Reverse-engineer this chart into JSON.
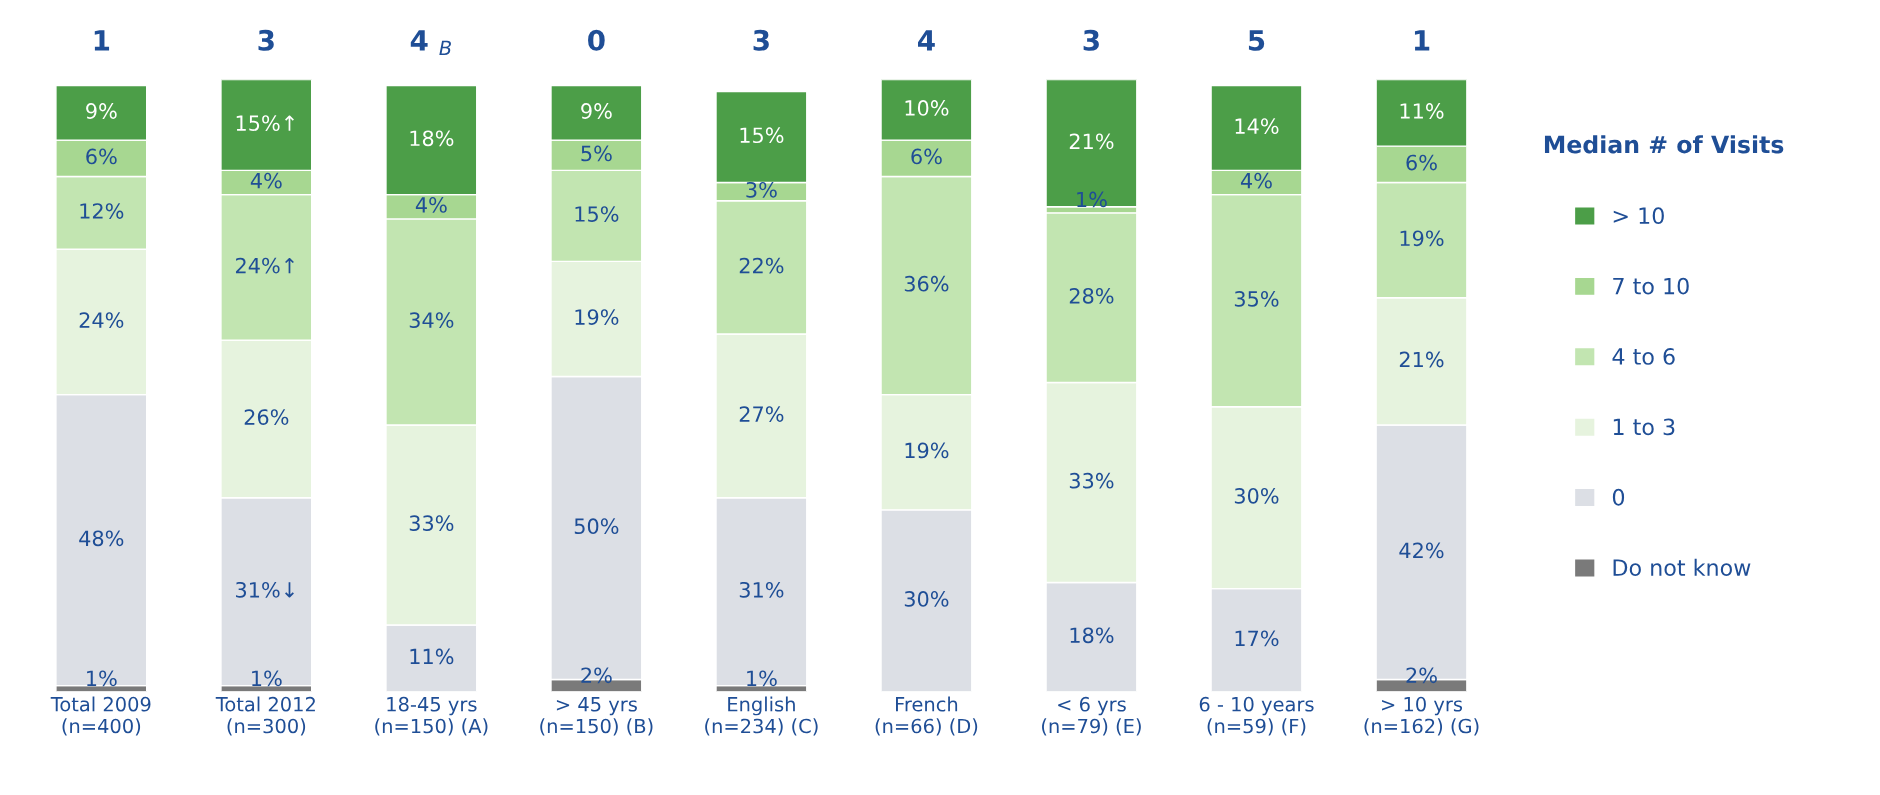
{
  "chart_data": {
    "type": "bar",
    "stacked": true,
    "legend": "right",
    "legend_title": "Median # of Visits",
    "grid": false,
    "tick_labels": "x",
    "categories": [
      "Total 2009\n(n=400)",
      "Total 2012\n(n=300)",
      "18-45 yrs\n(n=150) (A)",
      "> 45 yrs\n(n=150) (B)",
      "English\n(n=234) (C)",
      "French\n(n=66) (D)",
      "< 6 yrs\n(n=79) (E)",
      "6 - 10 years\n(n=59) (F)",
      "> 10 yrs\n(n=162) (G)"
    ],
    "series": [
      {
        "name": "Do not know",
        "color": "#7a7a7a",
        "values": [
          1,
          1,
          null,
          2,
          1,
          null,
          null,
          null,
          2
        ],
        "value_labels": [
          "1%",
          "1%",
          null,
          "2%",
          "1%",
          null,
          null,
          null,
          "2%"
        ]
      },
      {
        "name": "0",
        "color": "#dcdfe5",
        "values": [
          48,
          31,
          11,
          50,
          31,
          30,
          18,
          17,
          42
        ],
        "value_labels": [
          "48%",
          "31%↓",
          "11%",
          "50%",
          "31%",
          "30%",
          "18%",
          "17%",
          "42%"
        ]
      },
      {
        "name": "1 to 3",
        "color": "#e6f3de",
        "values": [
          24,
          26,
          33,
          19,
          27,
          19,
          33,
          30,
          21
        ],
        "value_labels": [
          "24%",
          "26%",
          "33%",
          "19%",
          "27%",
          "19%",
          "33%",
          "30%",
          "21%"
        ]
      },
      {
        "name": "4 to 6",
        "color": "#c2e5b1",
        "values": [
          12,
          24,
          34,
          15,
          22,
          36,
          28,
          35,
          19
        ],
        "value_labels": [
          "12%",
          "24%↑",
          "34%",
          "15%",
          "22%",
          "36%",
          "28%",
          "35%",
          "19%"
        ]
      },
      {
        "name": "7 to 10",
        "color": "#a7d791",
        "values": [
          6,
          4,
          4,
          5,
          3,
          6,
          1,
          4,
          6
        ],
        "value_labels": [
          "6%",
          "4%",
          "4%",
          "5%",
          "3%",
          "6%",
          "1%",
          "4%",
          "6%"
        ]
      },
      {
        "name": "> 10",
        "color": "#4c9e48",
        "values": [
          9,
          15,
          18,
          9,
          15,
          10,
          21,
          14,
          11
        ],
        "value_labels": [
          "9%",
          "15%↑",
          "18%",
          "9%",
          "15%",
          "10%",
          "21%",
          "14%",
          "11%"
        ]
      }
    ],
    "annotations": [
      "1",
      "3",
      "4 $_{B}$",
      "0",
      "3",
      "4",
      "3",
      "5",
      "1"
    ]
  }
}
